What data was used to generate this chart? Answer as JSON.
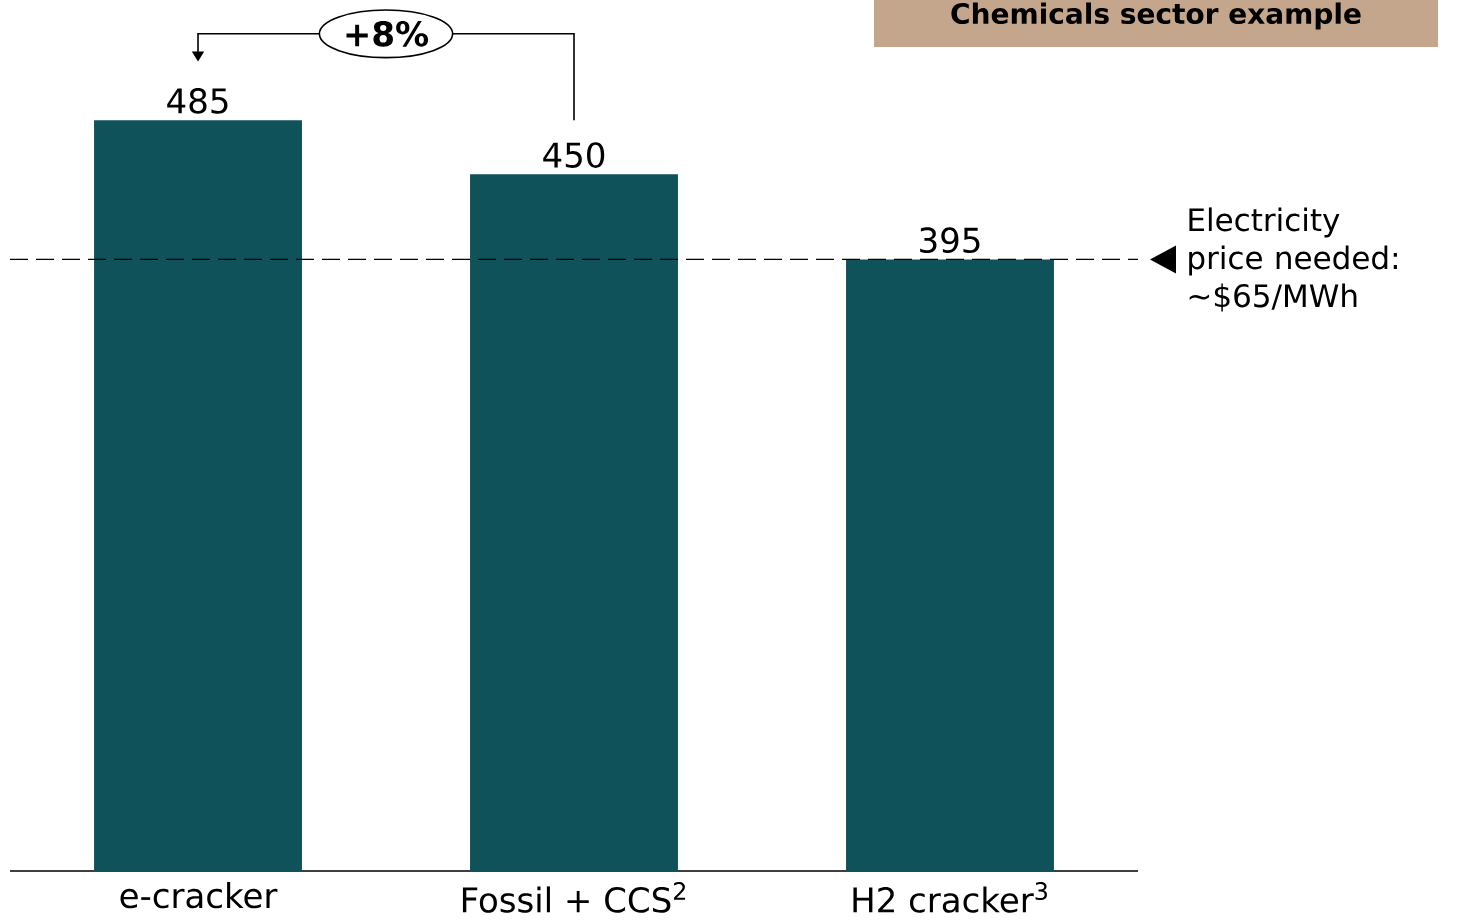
{
  "chart_data": {
    "type": "bar",
    "title": "Chemicals sector example",
    "categories": [
      "e-cracker",
      "Fossil + CCS$^{2}$",
      "H2 cracker$^{3}$"
    ],
    "values": [
      485,
      450,
      395
    ],
    "color": "#10525a",
    "data_labels": true,
    "annotations": [
      "+8%"
    ],
    "ref_lines": [
      {
        "axis": "y",
        "value": 395,
        "label": "Electricity price needed: ~$65/MWh",
        "line_style": "dashed",
        "color": "#000000"
      }
    ]
  }
}
